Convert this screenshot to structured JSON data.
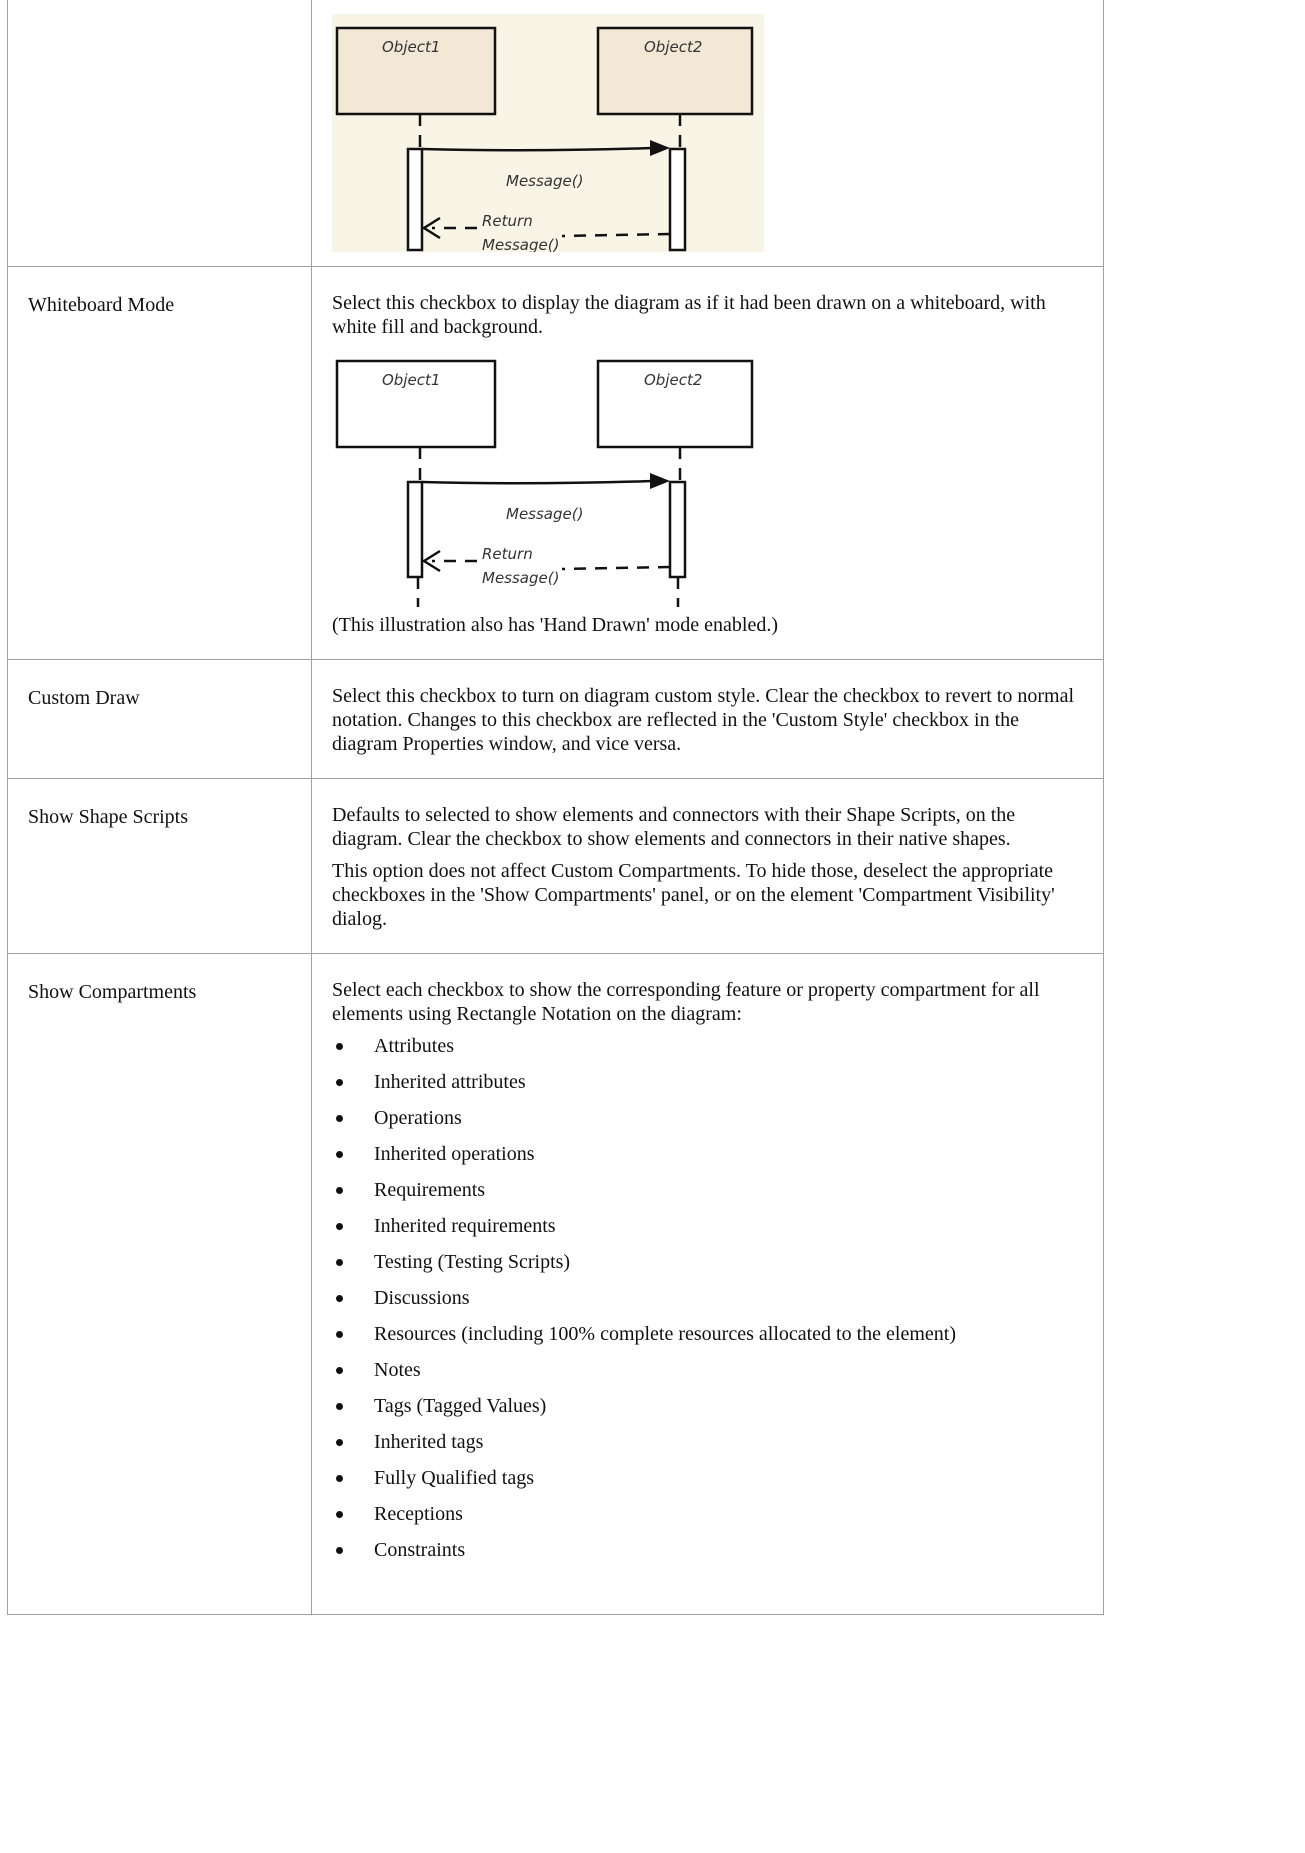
{
  "diagram": {
    "object1": "Object1",
    "object2": "Object2",
    "message": "Message()",
    "return_line1": "Return",
    "return_line2": "Message()"
  },
  "rows": [
    {},
    {
      "option": "Whiteboard Mode",
      "paragraphs": [
        "Select this checkbox to display the diagram as if it had been drawn on a whiteboard, with white fill and background."
      ],
      "note": "(This illustration also has 'Hand Drawn' mode enabled.)"
    },
    {
      "option": "Custom Draw",
      "paragraphs": [
        "Select this checkbox to turn on diagram custom style. Clear the checkbox to revert to normal notation. Changes to this checkbox are reflected in the 'Custom Style' checkbox in the diagram Properties window, and vice versa."
      ]
    },
    {
      "option": "Show Shape Scripts",
      "paragraphs": [
        "Defaults to selected to show elements and connectors with their Shape Scripts, on the diagram. Clear the checkbox to show elements and connectors in their native shapes.",
        "This option does not affect Custom Compartments. To hide those, deselect the appropriate checkboxes in the 'Show Compartments' panel, or on the element 'Compartment Visibility' dialog."
      ]
    },
    {
      "option": "Show Compartments",
      "paragraphs": [
        "Select each checkbox to show the corresponding feature or property compartment for all elements using Rectangle Notation on the diagram:"
      ],
      "bullets": [
        "Attributes",
        "Inherited attributes",
        "Operations",
        "Inherited operations",
        "Requirements",
        "Inherited requirements",
        "Testing (Testing Scripts)",
        "Discussions",
        "Resources (including 100% complete resources allocated to the element)",
        "Notes",
        "Tags (Tagged Values)",
        "Inherited tags",
        "Fully Qualified tags",
        "Receptions",
        "Constraints"
      ]
    }
  ]
}
